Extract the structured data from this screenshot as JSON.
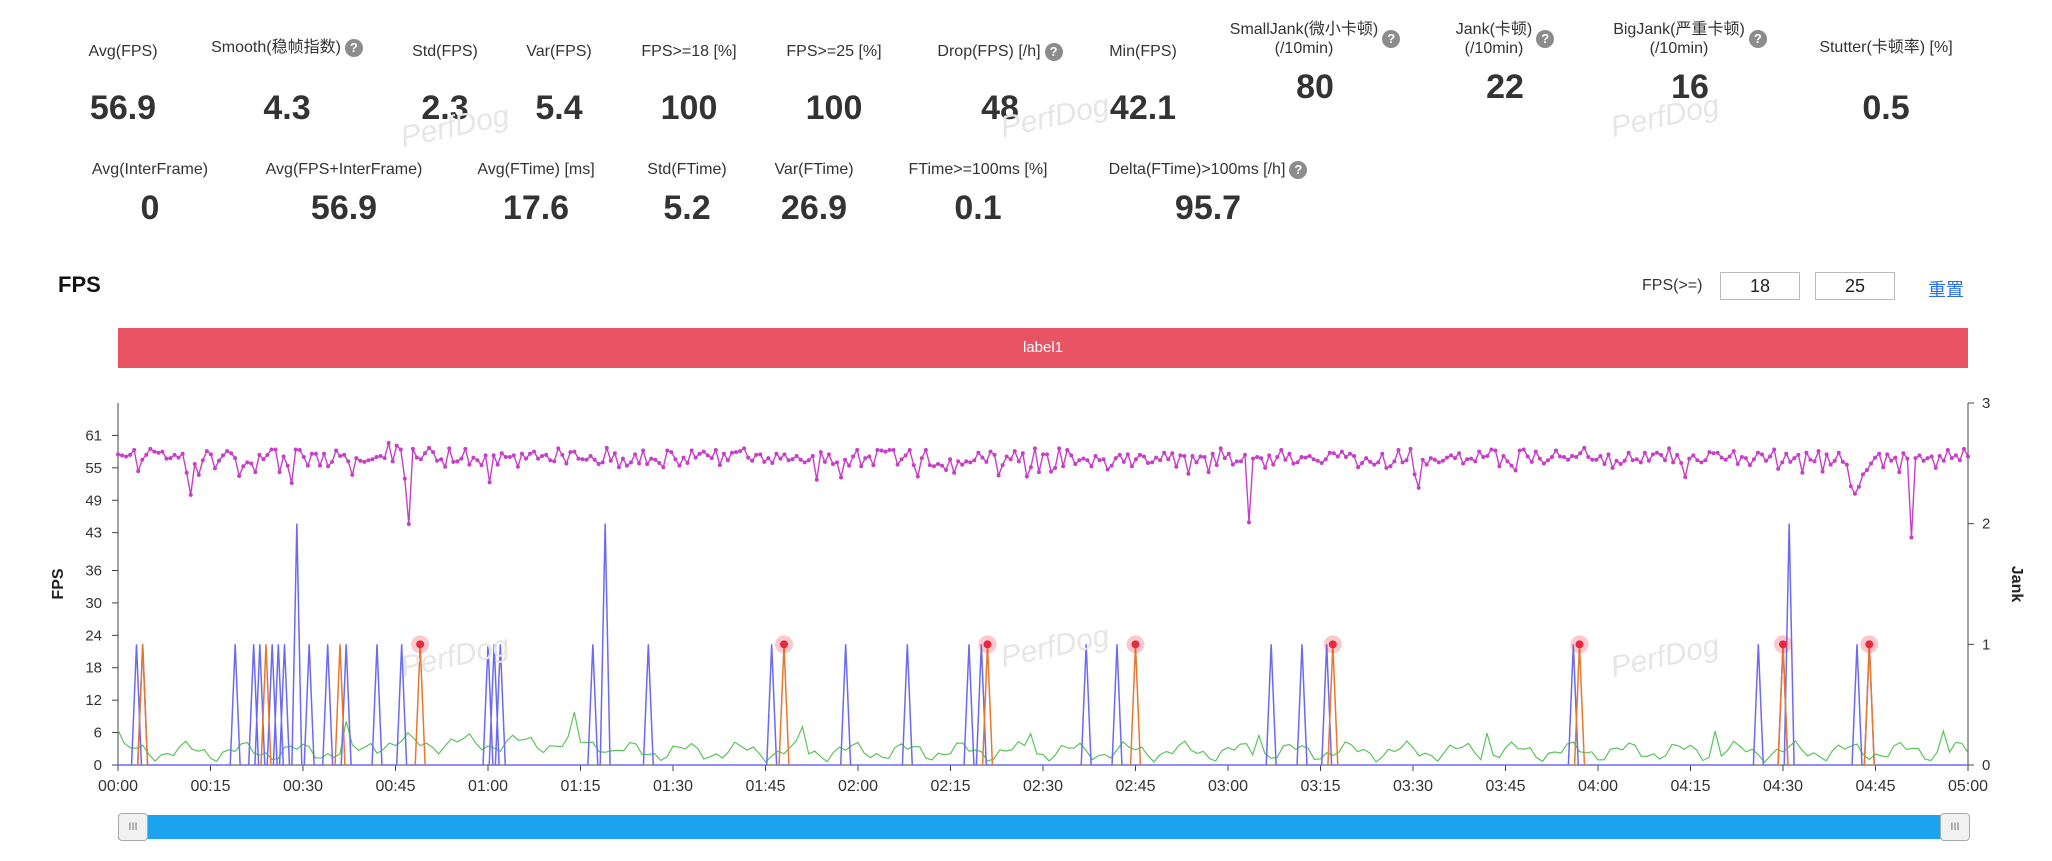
{
  "stats_row1": [
    {
      "label": "Avg(FPS)",
      "value": "56.9",
      "help": false
    },
    {
      "label": "Smooth(稳帧指数)",
      "value": "4.3",
      "help": true
    },
    {
      "label": "Std(FPS)",
      "value": "2.3",
      "help": false
    },
    {
      "label": "Var(FPS)",
      "value": "5.4",
      "help": false
    },
    {
      "label": "FPS>=18 [%]",
      "value": "100",
      "help": false
    },
    {
      "label": "FPS>=25 [%]",
      "value": "100",
      "help": false
    },
    {
      "label": "Drop(FPS) [/h]",
      "value": "48",
      "help": true
    },
    {
      "label": "Min(FPS)",
      "value": "42.1",
      "help": false
    },
    {
      "label": "SmallJank(微小卡顿)\n(/10min)",
      "value": "80",
      "help": true
    },
    {
      "label": "Jank(卡顿)\n(/10min)",
      "value": "22",
      "help": true
    },
    {
      "label": "BigJank(严重卡顿)\n(/10min)",
      "value": "16",
      "help": true
    },
    {
      "label": "Stutter(卡顿率) [%]",
      "value": "0.5",
      "help": false
    }
  ],
  "stats_row2": [
    {
      "label": "Avg(InterFrame)",
      "value": "0",
      "help": false
    },
    {
      "label": "Avg(FPS+InterFrame)",
      "value": "56.9",
      "help": false
    },
    {
      "label": "Avg(FTime) [ms]",
      "value": "17.6",
      "help": false
    },
    {
      "label": "Std(FTime)",
      "value": "5.2",
      "help": false
    },
    {
      "label": "Var(FTime)",
      "value": "26.9",
      "help": false
    },
    {
      "label": "FTime>=100ms [%]",
      "value": "0.1",
      "help": false
    },
    {
      "label": "Delta(FTime)>100ms [/h]",
      "value": "95.7",
      "help": true
    }
  ],
  "help_glyph": "?",
  "watermark": "PerfDog",
  "section_title": "FPS",
  "thresholds": {
    "label": "FPS(>=)",
    "value1": "18",
    "value2": "25"
  },
  "reset_label": "重置",
  "label_bar": {
    "text": "label1",
    "color": "#e95465"
  },
  "slider": {
    "left_grip": "III",
    "right_grip": "III",
    "color": "#1ba3f0",
    "range": [
      0,
      1
    ]
  },
  "colors": {
    "fps": "#c73fc7",
    "jank": "#6a6af2",
    "interframe": "#5cc45c",
    "bigjank": "#e8782e",
    "marker": "#e8283c"
  },
  "chart_data": {
    "type": "line",
    "xlabel": "",
    "ylabel": "FPS",
    "ylabel_right": "Jank",
    "x_ticks": [
      "00:00",
      "00:15",
      "00:30",
      "00:45",
      "01:00",
      "01:15",
      "01:30",
      "01:45",
      "02:00",
      "02:15",
      "02:30",
      "02:45",
      "03:00",
      "03:15",
      "03:30",
      "03:45",
      "04:00",
      "04:15",
      "04:30",
      "04:45",
      "05:00"
    ],
    "xlim_min": [
      0,
      300
    ],
    "y_ticks": [
      0,
      6,
      12,
      18,
      24,
      30,
      36,
      43,
      49,
      55,
      61
    ],
    "ylim": [
      0,
      67
    ],
    "y2_ticks": [
      0,
      1,
      2,
      3
    ],
    "y2lim": [
      0,
      3
    ],
    "fps": [
      57.5,
      57.3,
      57.1,
      57.4,
      58.3,
      54.4,
      56.5,
      57.4,
      58.5,
      58.0,
      57.8,
      58.0,
      56.7,
      56.8,
      57.4,
      56.9,
      57.6,
      54.1,
      50.0,
      55.7,
      53.7,
      56.4,
      58.1,
      57.5,
      54.9,
      56.3,
      57.3,
      58.1,
      57.7,
      56.8,
      53.5,
      55.3,
      56.0,
      55.8,
      54.2,
      57.4,
      56.6,
      57.4,
      58.4,
      58.4,
      54.2,
      57.1,
      55.4,
      52.2,
      58.4,
      58.3,
      57.0,
      55.4,
      57.6,
      57.6,
      55.4,
      57.6,
      55.3,
      56.1,
      58.2,
      57.2,
      57.4,
      56.2,
      53.7,
      56.8,
      56.3,
      56.1,
      56.4,
      56.6,
      57.0,
      57.2,
      56.8,
      59.6,
      56.2,
      59.1,
      58.4,
      53.0,
      44.6,
      58.5,
      56.9,
      56.6,
      57.7,
      58.7,
      57.9,
      56.3,
      56.6,
      55.2,
      58.6,
      56.1,
      56.2,
      56.7,
      58.5,
      55.6,
      56.9,
      56.4,
      55.5,
      57.3,
      52.3,
      57.3,
      55.6,
      57.7,
      57.0,
      57.0,
      57.3,
      55.2,
      57.6,
      56.7,
      57.6,
      58.0,
      56.7,
      57.2,
      57.4,
      56.4,
      56.2,
      58.6,
      57.4,
      55.8,
      57.9,
      58.0,
      56.7,
      56.6,
      56.5,
      57.2,
      56.5,
      55.7,
      56.0,
      58.7,
      56.3,
      57.7,
      55.1,
      56.7,
      55.4,
      56.0,
      57.5,
      55.8,
      58.2,
      55.7,
      56.7,
      56.5,
      55.9,
      55.1,
      58.2,
      57.9,
      56.6,
      55.4,
      56.9,
      55.9,
      58.2,
      56.9,
      57.6,
      58.0,
      57.3,
      56.8,
      58.3,
      55.5,
      57.6,
      56.4,
      57.8,
      57.9,
      58.1,
      58.6,
      56.9,
      56.3,
      57.4,
      57.5,
      56.1,
      56.8,
      55.9,
      57.6,
      56.7,
      57.5,
      56.4,
      56.6,
      57.2,
      56.5,
      56.0,
      56.4,
      57.2,
      52.8,
      57.9,
      56.1,
      57.5,
      55.7,
      56.0,
      53.2,
      56.5,
      55.4,
      57.1,
      58.3,
      55.3,
      56.8,
      57.1,
      55.5,
      58.3,
      58.2,
      58.0,
      58.3,
      58.3,
      55.6,
      56.6,
      57.3,
      58.3,
      55.5,
      53.4,
      56.8,
      58.3,
      55.5,
      55.3,
      55.7,
      55.4,
      54.6,
      56.6,
      54.1,
      56.2,
      55.6,
      56.2,
      56.0,
      56.4,
      57.8,
      56.9,
      56.1,
      58.0,
      57.4,
      53.6,
      55.5,
      57.1,
      56.6,
      58.1,
      56.2,
      57.7,
      53.4,
      55.1,
      58.6,
      54.2,
      57.5,
      57.5,
      54.3,
      55.0,
      58.6,
      55.3,
      58.3,
      57.3,
      55.7,
      56.4,
      56.7,
      56.4,
      55.3,
      57.2,
      56.4,
      56.6,
      54.7,
      55.4,
      56.8,
      57.4,
      56.1,
      57.5,
      55.3,
      56.6,
      57.4,
      57.1,
      55.9,
      56.0,
      56.9,
      56.4,
      57.8,
      56.6,
      57.7,
      55.2,
      57.3,
      57.2,
      53.9,
      57.2,
      56.0,
      57.1,
      57.0,
      54.2,
      57.6,
      55.5,
      58.6,
      56.8,
      57.6,
      55.6,
      56.2,
      56.2,
      57.4,
      44.9,
      56.7,
      57.0,
      56.8,
      55.0,
      57.3,
      55.6,
      57.0,
      58.3,
      56.5,
      57.6,
      55.8,
      56.0,
      57.0,
      56.9,
      57.2,
      56.6,
      56.3,
      55.9,
      56.6,
      57.8,
      57.7,
      57.1,
      58.0,
      57.0,
      57.6,
      57.2,
      55.1,
      55.9,
      56.8,
      56.1,
      55.6,
      56.0,
      57.6,
      55.0,
      55.3,
      56.2,
      58.3,
      56.0,
      56.4,
      58.5,
      53.8,
      51.3,
      56.5,
      55.6,
      56.8,
      56.5,
      56.0,
      56.3,
      56.9,
      57.3,
      56.8,
      57.7,
      55.8,
      56.6,
      56.7,
      56.2,
      58.0,
      57.0,
      57.2,
      58.4,
      58.2,
      55.3,
      57.2,
      56.2,
      55.4,
      54.5,
      58.2,
      58.4,
      57.1,
      56.1,
      58.0,
      56.7,
      55.8,
      56.4,
      57.0,
      58.2,
      57.1,
      57.0,
      56.5,
      57.2,
      57.0,
      57.7,
      58.7,
      57.0,
      56.5,
      56.5,
      57.2,
      55.7,
      57.5,
      55.0,
      56.3,
      55.7,
      56.3,
      57.8,
      56.4,
      56.6,
      56.0,
      57.8,
      56.3,
      57.5,
      57.8,
      57.4,
      56.4,
      58.6,
      56.0,
      57.4,
      55.9,
      53.3,
      56.7,
      57.3,
      56.4,
      56.0,
      56.4,
      57.9,
      57.7,
      57.8,
      56.9,
      56.5,
      57.1,
      58.1,
      55.7,
      57.0,
      56.8,
      55.5,
      56.6,
      57.8,
      57.5,
      56.3,
      57.1,
      58.4,
      54.8,
      56.0,
      57.6,
      56.1,
      56.8,
      57.4,
      54.1,
      57.8,
      56.5,
      56.2,
      58.1,
      54.3,
      57.5,
      55.6,
      56.3,
      57.8,
      56.1,
      55.6,
      51.6,
      50.2,
      51.5,
      53.8,
      54.6,
      55.8,
      56.9,
      57.6,
      55.1,
      57.5,
      56.3,
      56.9,
      54.2,
      57.7,
      56.7,
      42.1,
      56.8,
      57.3,
      56.3,
      56.8,
      57.1,
      55.0,
      57.2,
      56.3,
      58.3,
      56.8,
      57.3,
      56.4,
      58.5,
      57.1
    ],
    "jank_spikes": [
      {
        "t": 3,
        "v": 1
      },
      {
        "t": 4,
        "v": 1
      },
      {
        "t": 19,
        "v": 1
      },
      {
        "t": 22,
        "v": 1
      },
      {
        "t": 23,
        "v": 1
      },
      {
        "t": 25,
        "v": 1
      },
      {
        "t": 26,
        "v": 1
      },
      {
        "t": 27,
        "v": 1
      },
      {
        "t": 29,
        "v": 2
      },
      {
        "t": 31,
        "v": 1
      },
      {
        "t": 34,
        "v": 1
      },
      {
        "t": 37,
        "v": 1
      },
      {
        "t": 42,
        "v": 1
      },
      {
        "t": 46,
        "v": 1
      },
      {
        "t": 60,
        "v": 1
      },
      {
        "t": 61,
        "v": 1
      },
      {
        "t": 62,
        "v": 1
      },
      {
        "t": 77,
        "v": 1
      },
      {
        "t": 79,
        "v": 2
      },
      {
        "t": 86,
        "v": 1
      },
      {
        "t": 106,
        "v": 1
      },
      {
        "t": 118,
        "v": 1
      },
      {
        "t": 128,
        "v": 1
      },
      {
        "t": 138,
        "v": 1
      },
      {
        "t": 140,
        "v": 1
      },
      {
        "t": 157,
        "v": 1
      },
      {
        "t": 162,
        "v": 1
      },
      {
        "t": 187,
        "v": 1
      },
      {
        "t": 192,
        "v": 1
      },
      {
        "t": 196,
        "v": 1
      },
      {
        "t": 236,
        "v": 1
      },
      {
        "t": 266,
        "v": 1
      },
      {
        "t": 270,
        "v": 1
      },
      {
        "t": 271,
        "v": 2
      },
      {
        "t": 282,
        "v": 1
      },
      {
        "t": 284,
        "v": 1
      }
    ],
    "bigjank_spikes": [
      4,
      24,
      36,
      49,
      108,
      141,
      165,
      197,
      237,
      270,
      284
    ],
    "bigjank_markers": [
      49,
      108,
      141,
      165,
      197,
      237,
      270,
      284
    ]
  }
}
